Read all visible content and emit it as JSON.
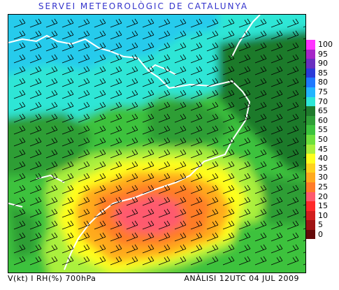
{
  "title": "SERVEI METEOROLÒGIC DE CATALUNYA",
  "footer": {
    "variable": "V(kt) I RH(%) 700hPa",
    "analysis": "ANÀLISI 12UTC 04 JUL 2009"
  },
  "legend": [
    {
      "label": "100",
      "color": "#ff33ff"
    },
    {
      "label": "95",
      "color": "#a626c8"
    },
    {
      "label": "90",
      "color": "#6a2fc0"
    },
    {
      "label": "85",
      "color": "#2a3ad8"
    },
    {
      "label": "80",
      "color": "#1e78ff"
    },
    {
      "label": "75",
      "color": "#22b4ff"
    },
    {
      "label": "70",
      "color": "#2ee6d6"
    },
    {
      "label": "65",
      "color": "#1f7a2c"
    },
    {
      "label": "60",
      "color": "#2e9e36"
    },
    {
      "label": "55",
      "color": "#3cc23c"
    },
    {
      "label": "50",
      "color": "#6ee03c"
    },
    {
      "label": "45",
      "color": "#aaf03c"
    },
    {
      "label": "40",
      "color": "#ffff1e"
    },
    {
      "label": "35",
      "color": "#ffd21e"
    },
    {
      "label": "30",
      "color": "#ffaa1e"
    },
    {
      "label": "25",
      "color": "#ff7b28"
    },
    {
      "label": "20",
      "color": "#ff5a6e"
    },
    {
      "label": "15",
      "color": "#ff2a2a"
    },
    {
      "label": "10",
      "color": "#d21e1e"
    },
    {
      "label": "5",
      "color": "#a01414"
    },
    {
      "label": "0",
      "color": "#640a0a"
    }
  ]
}
